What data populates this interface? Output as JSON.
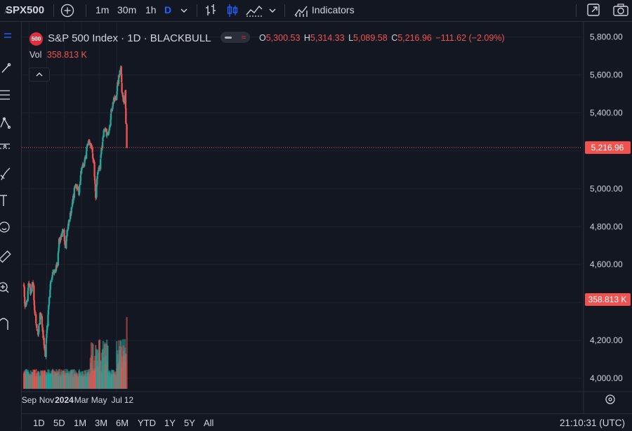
{
  "toolbar": {
    "symbol": "SPX500",
    "intervals": [
      "1m",
      "30m",
      "1h",
      "D"
    ],
    "indicators_label": "Indicators"
  },
  "legend": {
    "badge": "500",
    "title": "S&P 500 Index · 1D · BLACKBULL",
    "o_label": "O",
    "o_value": "5,300.53",
    "h_label": "H",
    "h_value": "5,314.33",
    "l_label": "L",
    "l_value": "5,089.58",
    "c_label": "C",
    "c_value": "5,216.96",
    "change": "−111.62 (−2.09%)",
    "vol_label": "Vol",
    "vol_value": "358.813 K"
  },
  "price_axis": {
    "ticks": [
      "5,800.00",
      "5,600.00",
      "5,400.00",
      "5,000.00",
      "4,800.00",
      "4,600.00",
      "4,200.00",
      "4,000.00"
    ],
    "last_price_label": "5,216.96",
    "last_volume_label": "358.813 K"
  },
  "time_axis": {
    "labels": [
      "Sep",
      "Nov",
      "2024",
      "Mar",
      "May",
      "Jul",
      "12"
    ]
  },
  "range_buttons": [
    "1D",
    "5D",
    "1M",
    "3M",
    "6M",
    "YTD",
    "1Y",
    "5Y",
    "All"
  ],
  "clock": "21:10:31 (UTC)",
  "colors": {
    "up": "#26a69a",
    "down": "#ef5350",
    "background": "#131722",
    "grid": "#1e222d",
    "text": "#d1d4dc"
  },
  "chart_data": {
    "type": "candlestick",
    "title": "S&P 500 Index · 1D · BLACKBULL",
    "symbol": "SPX500",
    "interval": "1D",
    "ylim": [
      3950,
      5880
    ],
    "last_close": 5216.96,
    "last_volume_k": 358.813,
    "price_path": [
      [
        "2023-08-14",
        4500
      ],
      [
        "2023-08-18",
        4370
      ],
      [
        "2023-08-25",
        4405
      ],
      [
        "2023-08-31",
        4508
      ],
      [
        "2023-09-07",
        4450
      ],
      [
        "2023-09-14",
        4505
      ],
      [
        "2023-09-21",
        4330
      ],
      [
        "2023-09-27",
        4275
      ],
      [
        "2023-10-03",
        4230
      ],
      [
        "2023-10-09",
        4335
      ],
      [
        "2023-10-13",
        4330
      ],
      [
        "2023-10-20",
        4225
      ],
      [
        "2023-10-27",
        4115
      ],
      [
        "2023-11-01",
        4240
      ],
      [
        "2023-11-08",
        4380
      ],
      [
        "2023-11-15",
        4505
      ],
      [
        "2023-11-24",
        4558
      ],
      [
        "2023-11-30",
        4565
      ],
      [
        "2023-12-08",
        4605
      ],
      [
        "2023-12-14",
        4720
      ],
      [
        "2023-12-22",
        4755
      ],
      [
        "2023-12-29",
        4770
      ],
      [
        "2024-01-05",
        4700
      ],
      [
        "2024-01-12",
        4785
      ],
      [
        "2024-01-19",
        4840
      ],
      [
        "2024-01-26",
        4890
      ],
      [
        "2024-02-02",
        4960
      ],
      [
        "2024-02-09",
        5030
      ],
      [
        "2024-02-21",
        4980
      ],
      [
        "2024-02-29",
        5095
      ],
      [
        "2024-03-08",
        5120
      ],
      [
        "2024-03-14",
        5160
      ],
      [
        "2024-03-21",
        5230
      ],
      [
        "2024-03-28",
        5255
      ],
      [
        "2024-04-05",
        5205
      ],
      [
        "2024-04-12",
        5140
      ],
      [
        "2024-04-19",
        4960
      ],
      [
        "2024-04-26",
        5085
      ],
      [
        "2024-05-03",
        5120
      ],
      [
        "2024-05-10",
        5220
      ],
      [
        "2024-05-17",
        5300
      ],
      [
        "2024-05-24",
        5305
      ],
      [
        "2024-05-31",
        5275
      ],
      [
        "2024-06-07",
        5345
      ],
      [
        "2024-06-14",
        5430
      ],
      [
        "2024-06-21",
        5465
      ],
      [
        "2024-06-28",
        5470
      ],
      [
        "2024-07-05",
        5560
      ],
      [
        "2024-07-12",
        5620
      ],
      [
        "2024-07-16",
        5660
      ],
      [
        "2024-07-19",
        5505
      ],
      [
        "2024-07-26",
        5460
      ],
      [
        "2024-07-31",
        5520
      ],
      [
        "2024-08-02",
        5350
      ],
      [
        "2024-08-05",
        5216.96
      ]
    ],
    "volume_ylim_k": [
      0,
      450
    ],
    "volume_notes": "daily volume bars; baseline ~60-100K, spikes ~220-260K in Apr-May, ~358.813K on last bar"
  }
}
